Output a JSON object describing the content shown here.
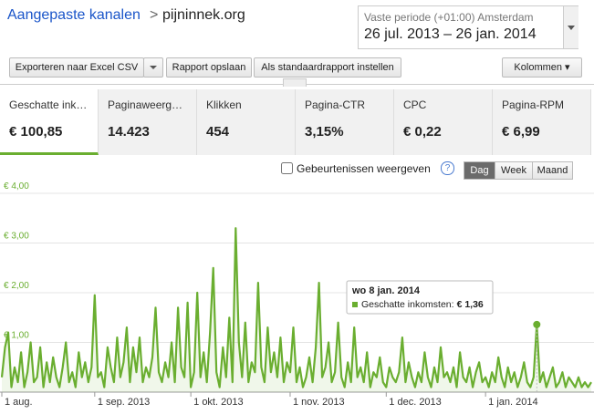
{
  "header": {
    "breadcrumb": "Aangepaste kanalen",
    "site": "pijninnek.org"
  },
  "period": {
    "label": "Vaste periode (+01:00) Amsterdam",
    "range": "26 jul. 2013 – 26 jan. 2014"
  },
  "toolbar": {
    "export": "Exporteren naar Excel CSV",
    "save": "Rapport opslaan",
    "default": "Als standaardrapport instellen",
    "columns": "Kolommen"
  },
  "metrics": [
    {
      "label": "Geschatte ink…",
      "value": "€ 100,85"
    },
    {
      "label": "Paginaweerg…",
      "value": "14.423"
    },
    {
      "label": "Klikken",
      "value": "454"
    },
    {
      "label": "Pagina-CTR",
      "value": "3,15%"
    },
    {
      "label": "CPC",
      "value": "€ 0,22"
    },
    {
      "label": "Pagina-RPM",
      "value": "€ 6,99"
    }
  ],
  "options": {
    "events": "Gebeurtenissen weergeven",
    "help": "?",
    "granularity": [
      "Dag",
      "Week",
      "Maand"
    ]
  },
  "chart_data": {
    "type": "line",
    "color": "#6aae30",
    "categories": [
      "1 aug.",
      null,
      null,
      null,
      null,
      null,
      null,
      null,
      null,
      null,
      null,
      null,
      null,
      null,
      null,
      null,
      null,
      null,
      null,
      null,
      null,
      null,
      null,
      null,
      null,
      null,
      null,
      null,
      null,
      "1 sep. 2013",
      null,
      null,
      null,
      null,
      null,
      null,
      null,
      null,
      null,
      null,
      null,
      null,
      null,
      null,
      null,
      null,
      null,
      null,
      null,
      null,
      null,
      null,
      null,
      null,
      null,
      null,
      null,
      null,
      null,
      "1 okt. 2013",
      null,
      null,
      null,
      null,
      null,
      null,
      null,
      null,
      null,
      null,
      null,
      null,
      null,
      null,
      null,
      null,
      null,
      null,
      null,
      null,
      null,
      null,
      null,
      null,
      null,
      null,
      null,
      null,
      null,
      null,
      "1 nov. 2013",
      null,
      null,
      null,
      null,
      null,
      null,
      null,
      null,
      null,
      null,
      null,
      null,
      null,
      null,
      null,
      null,
      null,
      null,
      null,
      null,
      null,
      null,
      null,
      null,
      null,
      null,
      null,
      null,
      null,
      "1 dec. 2013",
      null,
      null,
      null,
      null,
      null,
      null,
      null,
      null,
      null,
      null,
      null,
      null,
      null,
      null,
      null,
      null,
      null,
      null,
      null,
      null,
      null,
      null,
      null,
      null,
      null,
      null,
      null,
      null,
      null,
      null,
      "1 jan. 2014",
      null,
      null,
      null,
      null,
      null,
      null,
      null,
      null,
      null,
      null,
      null,
      null,
      null,
      null,
      null,
      null,
      null,
      null,
      null,
      null,
      null,
      null,
      null,
      null,
      null,
      null,
      null,
      null,
      null,
      null,
      null,
      null,
      null
    ],
    "values": [
      0.3,
      0.9,
      1.2,
      0.1,
      0.5,
      0.2,
      0.8,
      0.1,
      0.4,
      1.0,
      0.2,
      0.3,
      0.9,
      0.1,
      0.6,
      0.2,
      0.7,
      0.3,
      0.1,
      0.5,
      1.0,
      0.2,
      0.4,
      0.1,
      0.8,
      0.3,
      0.6,
      0.2,
      0.5,
      1.95,
      0.3,
      0.4,
      0.1,
      0.9,
      0.5,
      0.2,
      1.1,
      0.3,
      0.6,
      1.3,
      0.2,
      0.9,
      0.4,
      1.1,
      0.2,
      0.5,
      0.3,
      0.7,
      1.7,
      0.4,
      0.2,
      0.6,
      0.3,
      1.0,
      0.2,
      1.7,
      0.5,
      0.3,
      1.8,
      0.1,
      0.4,
      2.0,
      0.3,
      0.8,
      0.2,
      1.2,
      2.5,
      0.4,
      0.1,
      0.9,
      0.3,
      1.5,
      0.2,
      3.3,
      1.0,
      0.3,
      1.4,
      0.2,
      0.6,
      0.4,
      2.2,
      0.5,
      0.2,
      1.3,
      0.4,
      0.8,
      0.3,
      1.1,
      0.2,
      0.6,
      0.4,
      1.3,
      0.2,
      0.5,
      0.1,
      0.3,
      0.7,
      0.2,
      0.9,
      2.2,
      0.3,
      0.5,
      1.0,
      0.2,
      0.4,
      1.4,
      0.3,
      0.1,
      0.6,
      0.2,
      1.3,
      0.3,
      0.5,
      0.2,
      0.8,
      0.1,
      0.4,
      0.3,
      0.7,
      0.2,
      0.1,
      0.5,
      0.3,
      0.2,
      0.4,
      1.1,
      0.2,
      0.6,
      0.3,
      0.1,
      0.4,
      0.2,
      0.8,
      0.3,
      0.1,
      0.5,
      0.2,
      0.9,
      0.3,
      0.4,
      0.2,
      0.5,
      0.1,
      0.8,
      0.3,
      0.2,
      0.5,
      0.1,
      0.4,
      0.6,
      0.2,
      0.3,
      0.1,
      0.4,
      0.2,
      0.7,
      0.3,
      0.1,
      0.5,
      0.2,
      0.4,
      0.1,
      0.3,
      0.6,
      0.2,
      0.1,
      0.3,
      1.36,
      0.2,
      0.4,
      0.1,
      0.3,
      0.5,
      0.1,
      0.2,
      0.4,
      0.1,
      0.3,
      0.2,
      0.1,
      0.3,
      0.1,
      0.2,
      0.1,
      0.2
    ],
    "ylim": [
      0,
      4
    ],
    "yticks": [
      {
        "value": 1,
        "label": "€ 1,00"
      },
      {
        "value": 2,
        "label": "€ 2,00"
      },
      {
        "value": 3,
        "label": "€ 3,00"
      },
      {
        "value": 4,
        "label": "€ 4,00"
      }
    ],
    "grid": true,
    "tooltip": {
      "date": "wo 8 jan. 2014",
      "label": "Geschatte inkomsten:",
      "value": "€ 1,36"
    }
  }
}
